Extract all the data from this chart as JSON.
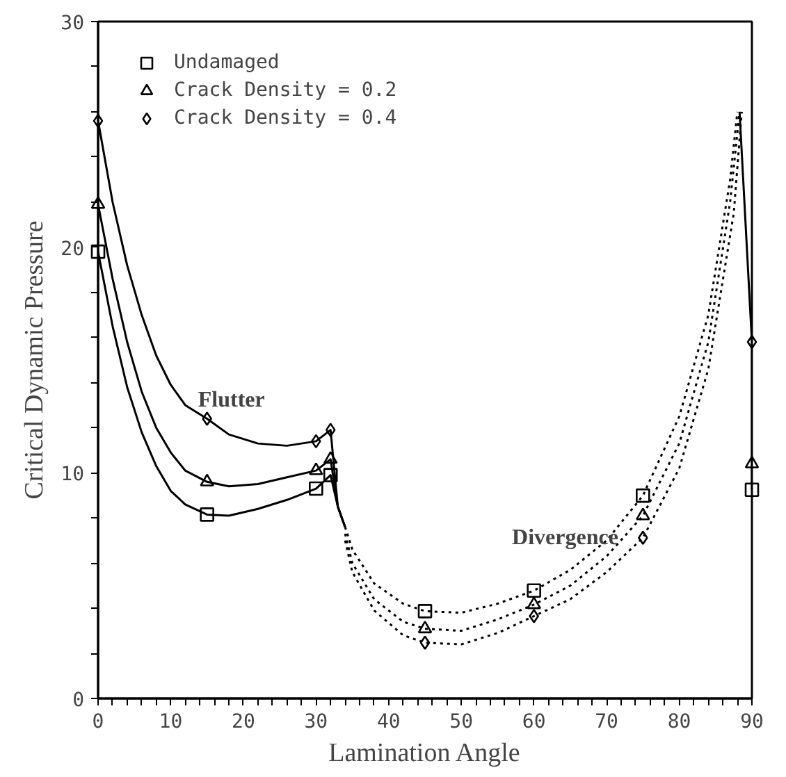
{
  "chart_data": {
    "type": "line",
    "xlabel": "Lamination Angle",
    "ylabel": "Critical Dynamic Pressure",
    "xlim": [
      0,
      90
    ],
    "ylim": [
      0,
      30
    ],
    "xticks": [
      0,
      {
        "value": 2,
        "label": null
      },
      {
        "value": 4,
        "label": null
      },
      {
        "value": 6,
        "label": null
      },
      {
        "value": 8,
        "label": null
      },
      10,
      {
        "value": 12,
        "label": null
      },
      {
        "value": 14,
        "label": null
      },
      {
        "value": 16,
        "label": null
      },
      {
        "value": 18,
        "label": null
      },
      20,
      {
        "value": 22,
        "label": null
      },
      {
        "value": 24,
        "label": null
      },
      {
        "value": 26,
        "label": null
      },
      {
        "value": 28,
        "label": null
      },
      30,
      {
        "value": 32,
        "label": null
      },
      {
        "value": 34,
        "label": null
      },
      {
        "value": 36,
        "label": null
      },
      {
        "value": 38,
        "label": null
      },
      40,
      {
        "value": 42,
        "label": null
      },
      {
        "value": 44,
        "label": null
      },
      {
        "value": 46,
        "label": null
      },
      {
        "value": 48,
        "label": null
      },
      50,
      {
        "value": 52,
        "label": null
      },
      {
        "value": 54,
        "label": null
      },
      {
        "value": 56,
        "label": null
      },
      {
        "value": 58,
        "label": null
      },
      60,
      {
        "value": 62,
        "label": null
      },
      {
        "value": 64,
        "label": null
      },
      {
        "value": 66,
        "label": null
      },
      {
        "value": 68,
        "label": null
      },
      70,
      {
        "value": 72,
        "label": null
      },
      {
        "value": 74,
        "label": null
      },
      {
        "value": 76,
        "label": null
      },
      {
        "value": 78,
        "label": null
      },
      80,
      {
        "value": 82,
        "label": null
      },
      {
        "value": 84,
        "label": null
      },
      {
        "value": 86,
        "label": null
      },
      {
        "value": 88,
        "label": null
      },
      90
    ],
    "yticks": [
      0,
      {
        "value": 2,
        "label": null
      },
      {
        "value": 4,
        "label": null
      },
      {
        "value": 6,
        "label": null
      },
      {
        "value": 8,
        "label": null
      },
      10,
      {
        "value": 12,
        "label": null
      },
      {
        "value": 14,
        "label": null
      },
      {
        "value": 16,
        "label": null
      },
      {
        "value": 18,
        "label": null
      },
      20,
      {
        "value": 22,
        "label": null
      },
      {
        "value": 24,
        "label": null
      },
      {
        "value": 26,
        "label": null
      },
      {
        "value": 28,
        "label": null
      },
      30
    ],
    "grid": false,
    "legend": "top left",
    "annotations": [
      "Flutter",
      "Divergence"
    ],
    "series": [
      {
        "type": "scatter",
        "name": "Undamaged",
        "color": "#000000",
        "marker": "square",
        "x": [
          0,
          15,
          30,
          32,
          45,
          60,
          75,
          90
        ],
        "values": [
          19.8,
          8.15,
          9.3,
          9.9,
          3.87,
          4.78,
          8.99,
          9.25
        ]
      },
      {
        "type": "scatter",
        "name": "Crack Density = 0.2",
        "color": "#000000",
        "marker": "triangle",
        "x": [
          0,
          15,
          30,
          32,
          45,
          60,
          75,
          90
        ],
        "values": [
          21.9,
          9.6,
          10.1,
          10.6,
          3.09,
          4.16,
          8.1,
          10.4
        ]
      },
      {
        "type": "scatter",
        "name": "Crack Density = 0.4",
        "color": "#000000",
        "marker": "diamond",
        "x": [
          0,
          15,
          30,
          32,
          45,
          60,
          75,
          90
        ],
        "values": [
          25.6,
          12.4,
          11.4,
          11.9,
          2.47,
          3.65,
          7.12,
          15.8
        ]
      },
      {
        "color": "#000000",
        "line_style": "solid",
        "x": [
          0,
          2,
          4,
          6,
          8,
          10,
          12,
          15,
          18,
          22,
          26,
          30,
          32,
          33,
          34
        ],
        "values": [
          19.8,
          16.5,
          13.8,
          11.8,
          10.3,
          9.2,
          8.6,
          8.15,
          8.1,
          8.4,
          8.8,
          9.3,
          9.9,
          8.5,
          7.6
        ]
      },
      {
        "color": "#000000",
        "line_style": "solid",
        "x": [
          0,
          2,
          4,
          6,
          8,
          10,
          12,
          15,
          18,
          22,
          26,
          30,
          32,
          33,
          34
        ],
        "values": [
          21.9,
          18.6,
          15.8,
          13.6,
          12.0,
          10.9,
          10.1,
          9.6,
          9.4,
          9.5,
          9.8,
          10.1,
          10.6,
          8.5,
          7.6
        ]
      },
      {
        "color": "#000000",
        "line_style": "solid",
        "x": [
          0,
          2,
          4,
          6,
          8,
          10,
          12,
          15,
          18,
          22,
          26,
          30,
          32,
          33,
          34
        ],
        "values": [
          25.6,
          22,
          19.2,
          17,
          15.2,
          13.9,
          13.0,
          12.4,
          11.7,
          11.3,
          11.2,
          11.4,
          11.9,
          8.5,
          7.6
        ]
      },
      {
        "color": "#000000",
        "line_style": "solid",
        "x": [
          88.3,
          90,
          90
        ],
        "values": [
          26,
          15.8,
          9.25
        ]
      },
      {
        "color": "#000000",
        "line_style": "dotted",
        "x": [
          34,
          35,
          38,
          42,
          45,
          50,
          55,
          60,
          65,
          70,
          75,
          80,
          84,
          87,
          88
        ],
        "values": [
          7.6,
          6.6,
          5.1,
          4.2,
          3.87,
          3.8,
          4.2,
          4.78,
          5.7,
          7.0,
          8.99,
          12.5,
          17,
          23,
          26
        ]
      },
      {
        "color": "#000000",
        "line_style": "dotted",
        "x": [
          34,
          35,
          38,
          42,
          45,
          50,
          55,
          60,
          65,
          70,
          75,
          80,
          84,
          87,
          88.3
        ],
        "values": [
          7.3,
          6.0,
          4.4,
          3.4,
          3.09,
          3.0,
          3.5,
          4.16,
          5.0,
          6.3,
          8.1,
          11.3,
          15.8,
          22,
          26
        ]
      },
      {
        "color": "#000000",
        "line_style": "dotted",
        "x": [
          34,
          35,
          38,
          42,
          45,
          50,
          55,
          60,
          65,
          70,
          75,
          80,
          84,
          87.5,
          88.6
        ],
        "values": [
          7.0,
          5.6,
          3.9,
          2.8,
          2.47,
          2.4,
          2.9,
          3.65,
          4.4,
          5.6,
          7.12,
          10.2,
          14.6,
          21.5,
          26
        ]
      }
    ]
  }
}
